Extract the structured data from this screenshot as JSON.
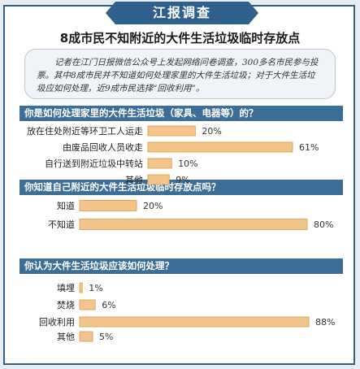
{
  "banner": {
    "label": "江报调查"
  },
  "headline": "8成市民不知附近的大件生活垃圾临时存放点",
  "intro": "记者在江门日报微信公众号上发起网络问卷调查，300多名市民参与投票。其中8成市民并不知道如何处理家里的大件生活垃圾；对于大件生活垃圾应如何处理，近9成市民选择“回收利用”。",
  "colors": {
    "bar": "#f4c58a",
    "bar_stroke": "#d89a48",
    "question_bg": "#3d6e97",
    "banner_bg": "#2f5f8b"
  },
  "chart_data": [
    {
      "type": "bar",
      "title": "你是如何处理家里的大件生活垃圾（家具、电器等）的？",
      "categories": [
        "放在住处附近等环卫工人运走",
        "由废品回收人员收走",
        "自行送到附近垃圾中转站",
        "其他"
      ],
      "values": [
        20,
        61,
        10,
        9
      ],
      "value_labels": [
        "20%",
        "61%",
        "10%",
        "9%"
      ],
      "xlim": [
        0,
        61
      ]
    },
    {
      "type": "bar",
      "title": "你知道自己附近的大件生活垃圾临时存放点吗？",
      "categories": [
        "知道",
        "不知道"
      ],
      "values": [
        20,
        80
      ],
      "value_labels": [
        "20%",
        "80%"
      ],
      "xlim": [
        0,
        80
      ]
    },
    {
      "type": "bar",
      "title": "你认为大件生活垃圾应该如何处理？",
      "categories": [
        "填埋",
        "焚烧",
        "回收利用",
        "其他"
      ],
      "values": [
        1,
        6,
        88,
        5
      ],
      "value_labels": [
        "1%",
        "6%",
        "88%",
        "5%"
      ],
      "xlim": [
        0,
        88
      ]
    }
  ]
}
